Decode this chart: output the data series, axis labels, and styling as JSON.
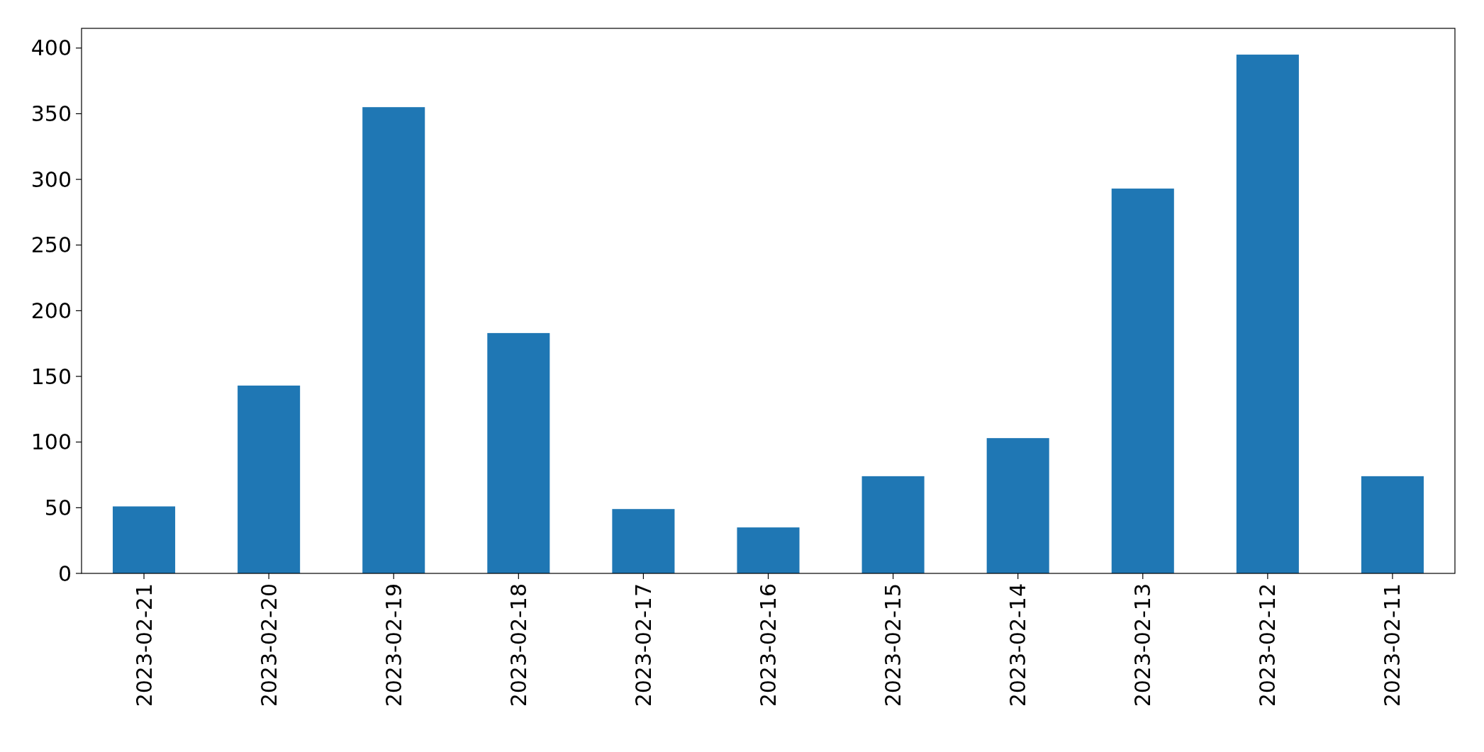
{
  "chart_data": {
    "type": "bar",
    "categories": [
      "2023-02-21",
      "2023-02-20",
      "2023-02-19",
      "2023-02-18",
      "2023-02-17",
      "2023-02-16",
      "2023-02-15",
      "2023-02-14",
      "2023-02-13",
      "2023-02-12",
      "2023-02-11"
    ],
    "values": [
      51,
      143,
      355,
      183,
      49,
      35,
      74,
      103,
      293,
      395,
      74
    ],
    "color": "#1f77b4",
    "ylim": [
      0,
      415
    ],
    "yticks": [
      0,
      50,
      100,
      150,
      200,
      250,
      300,
      350,
      400
    ]
  }
}
